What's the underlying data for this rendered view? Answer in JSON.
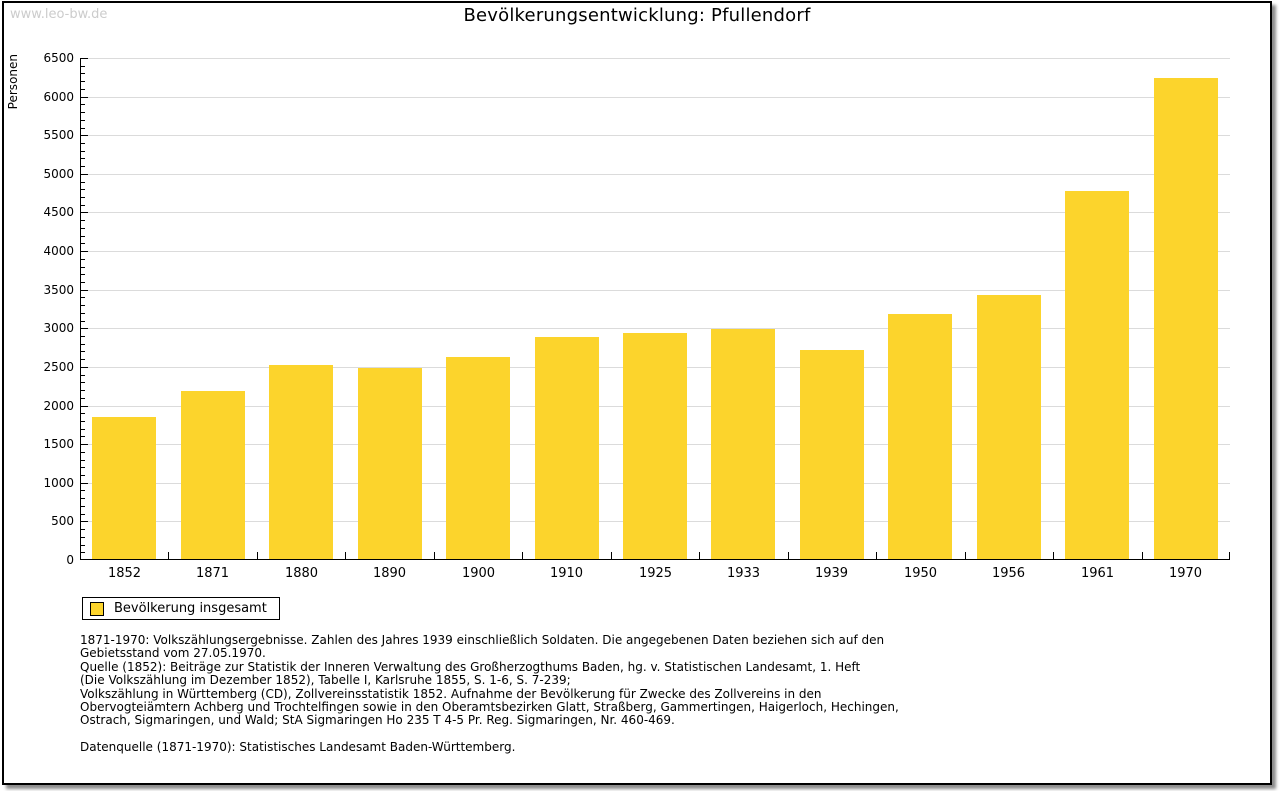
{
  "watermark": "www.leo-bw.de",
  "title": "Bevölkerungsentwicklung: Pfullendorf",
  "legend": {
    "label": "Bevölkerung insgesamt"
  },
  "colors": {
    "bar": "#FCD42C",
    "grid": "#DBDBDB",
    "axis": "#000000",
    "watermark": "#CCCCCC"
  },
  "chart_data": {
    "type": "bar",
    "title": "Bevölkerungsentwicklung: Pfullendorf",
    "xlabel": "",
    "ylabel": "Personen",
    "categories": [
      "1852",
      "1871",
      "1880",
      "1890",
      "1900",
      "1910",
      "1925",
      "1933",
      "1939",
      "1950",
      "1956",
      "1961",
      "1970"
    ],
    "series": [
      {
        "name": "Bevölkerung insgesamt",
        "values": [
          1846,
          2184,
          2527,
          2481,
          2624,
          2887,
          2937,
          2997,
          2716,
          3184,
          3437,
          4779,
          6244
        ]
      }
    ],
    "ylim": [
      0,
      6500
    ],
    "y_major_step": 500,
    "y_minor_step": 100,
    "grid": "horizontal-major",
    "legend_position": "bottom-left",
    "bar_color": "#FCD42C"
  },
  "footnotes": {
    "lines": [
      "1871-1970: Volkszählungsergebnisse. Zahlen des Jahres 1939 einschließlich Soldaten. Die angegebenen Daten beziehen sich auf den",
      "Gebietsstand vom 27.05.1970.",
      "Quelle (1852): Beiträge zur Statistik der Inneren Verwaltung des Großherzogthums Baden, hg. v. Statistischen Landesamt, 1. Heft",
      "(Die Volkszählung im Dezember 1852), Tabelle I, Karlsruhe 1855, S. 1-6, S. 7-239;",
      "Volkszählung in Württemberg (CD), Zollvereinsstatistik 1852. Aufnahme der Bevölkerung für Zwecke des Zollvereins in den",
      "Obervogteiämtern Achberg und Trochtelfingen sowie in den Oberamtsbezirken Glatt, Straßberg, Gammertingen, Haigerloch, Hechingen,",
      "Ostrach, Sigmaringen, und Wald; StA Sigmaringen Ho 235 T 4-5 Pr. Reg. Sigmaringen, Nr. 460-469.",
      "",
      "Datenquelle (1871-1970): Statistisches Landesamt Baden-Württemberg."
    ]
  }
}
